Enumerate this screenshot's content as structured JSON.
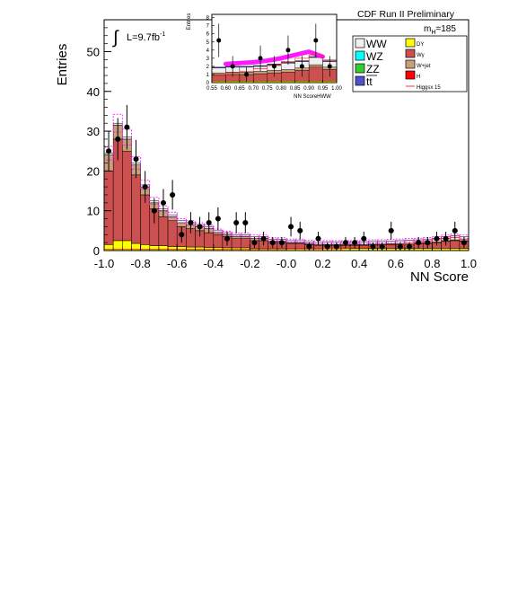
{
  "chart_data": {
    "type": "bar",
    "title": "CDF Run II Preliminary",
    "xlabel": "NN Score",
    "ylabel": "Entries",
    "xlim": [
      -1.0,
      1.0
    ],
    "ylim": [
      0,
      58
    ],
    "x_ticks": [
      "-1.0",
      "-0.8",
      "-0.6",
      "-0.4",
      "-0.2",
      "-0.0",
      "0.2",
      "0.4",
      "0.6",
      "0.8",
      "1.0"
    ],
    "y_ticks": [
      "0",
      "10",
      "20",
      "30",
      "40",
      "50"
    ],
    "luminosity_prefix": "L=9.7fb",
    "luminosity_exp": "-1",
    "mass_label_main": "m",
    "mass_label_sub": "H",
    "mass_label_value": "=185",
    "colors": {
      "WW": "#f0f0f0",
      "WZ": "#00ffff",
      "ZZ": "#33cc33",
      "ttbar": "#5050cc",
      "DY": "#ffff00",
      "Wgamma": "#cc5050",
      "Wjet": "#c8a07a",
      "H": "#ff0000",
      "signal_line": "#ff3333",
      "band": "#ff00ff"
    },
    "legend": [
      {
        "label": "WW",
        "color": "#f0f0f0"
      },
      {
        "label": "WZ",
        "color": "#00ffff"
      },
      {
        "label": "ZZ",
        "color": "#33cc33"
      },
      {
        "label": "tt",
        "overline": true,
        "color": "#5050cc"
      },
      {
        "label": "DY",
        "color": "#ffff00"
      },
      {
        "label": "Wγ",
        "color": "#cc5050"
      },
      {
        "label": "W+jet",
        "color": "#c8a07a"
      },
      {
        "label": "H",
        "color": "#ff0000"
      },
      {
        "label": "Higgsx 15",
        "color": "#ff3333",
        "line": true
      }
    ],
    "bins": {
      "low": [
        -1.0,
        -0.95,
        -0.9,
        -0.85,
        -0.8,
        -0.75,
        -0.7,
        -0.65,
        -0.6,
        -0.55,
        -0.5,
        -0.45,
        -0.4,
        -0.35,
        -0.3,
        -0.25,
        -0.2,
        -0.15,
        -0.1,
        -0.05,
        0.0,
        0.05,
        0.1,
        0.15,
        0.2,
        0.25,
        0.3,
        0.35,
        0.4,
        0.45,
        0.5,
        0.55,
        0.6,
        0.65,
        0.7,
        0.75,
        0.8,
        0.85,
        0.9,
        0.95
      ],
      "width": 0.05
    },
    "series": [
      {
        "name": "DY",
        "values": [
          1.5,
          2.5,
          2.5,
          1.8,
          1.5,
          1.2,
          1.2,
          1.0,
          1.0,
          0.9,
          0.9,
          0.8,
          0.8,
          0.7,
          0.7,
          0.7,
          0.6,
          0.6,
          0.6,
          0.6,
          0.5,
          0.5,
          0.5,
          0.5,
          0.5,
          0.5,
          0.5,
          0.5,
          0.5,
          0.5,
          0.5,
          0.5,
          0.5,
          0.5,
          0.5,
          0.5,
          0.5,
          0.5,
          0.5,
          0.5
        ]
      },
      {
        "name": "Wγ",
        "values": [
          18.5,
          25.5,
          22.5,
          17.2,
          12.5,
          9.3,
          7.3,
          6.5,
          5.0,
          4.6,
          4.1,
          3.7,
          3.2,
          2.8,
          2.3,
          2.3,
          1.9,
          1.9,
          1.4,
          1.4,
          1.3,
          1.3,
          1.0,
          0.8,
          0.8,
          0.8,
          0.8,
          0.8,
          0.8,
          0.9,
          0.9,
          1.0,
          1.0,
          1.1,
          1.2,
          1.3,
          1.5,
          1.8,
          2.0,
          1.8
        ]
      },
      {
        "name": "W+jet",
        "values": [
          4.0,
          3.5,
          3.0,
          2.5,
          2.0,
          1.5,
          1.5,
          1.0,
          1.0,
          1.0,
          1.0,
          1.0,
          0.5,
          0.5,
          0.5,
          0.5,
          0.5,
          0.5,
          0.3,
          0.3,
          0.2,
          0.2,
          0.2,
          0.2,
          0.2,
          0.2,
          0.2,
          0.2,
          0.2,
          0.2,
          0.2,
          0.2,
          0.2,
          0.2,
          0.2,
          0.2,
          0.2,
          0.2,
          0.2,
          0.2
        ]
      },
      {
        "name": "WW",
        "values": [
          0.5,
          0.5,
          0.5,
          0.5,
          0.5,
          0.5,
          0.5,
          0.5,
          0.5,
          0.5,
          0.5,
          0.5,
          0.5,
          0.5,
          0.5,
          0.5,
          0.5,
          0.5,
          0.5,
          0.5,
          0.5,
          0.5,
          0.5,
          0.5,
          0.6,
          0.6,
          0.6,
          0.6,
          0.6,
          0.7,
          0.7,
          0.7,
          0.8,
          0.8,
          0.8,
          0.9,
          0.9,
          1.0,
          1.0,
          1.0
        ]
      }
    ],
    "signal_x15": [
      0.3,
      0.3,
      0.3,
      0.3,
      0.3,
      0.3,
      0.3,
      0.3,
      0.3,
      0.3,
      0.3,
      0.3,
      0.3,
      0.3,
      0.3,
      0.3,
      0.3,
      0.3,
      0.3,
      0.3,
      0.4,
      0.4,
      0.4,
      0.4,
      0.5,
      0.5,
      0.6,
      0.7,
      0.8,
      0.9,
      1.0,
      1.2,
      1.4,
      1.7,
      2.0,
      2.3,
      2.7,
      3.0,
      3.3,
      2.8
    ],
    "data_points": {
      "x": [
        -0.975,
        -0.925,
        -0.875,
        -0.825,
        -0.775,
        -0.725,
        -0.675,
        -0.625,
        -0.575,
        -0.525,
        -0.475,
        -0.425,
        -0.375,
        -0.325,
        -0.275,
        -0.225,
        -0.175,
        -0.125,
        -0.075,
        -0.025,
        0.025,
        0.075,
        0.125,
        0.175,
        0.225,
        0.275,
        0.325,
        0.375,
        0.425,
        0.475,
        0.525,
        0.575,
        0.625,
        0.675,
        0.725,
        0.775,
        0.825,
        0.875,
        0.925,
        0.975
      ],
      "y": [
        25,
        28,
        31,
        23,
        16,
        10,
        12,
        14,
        4,
        7,
        6,
        7,
        8,
        3,
        7,
        7,
        2,
        3,
        2,
        2,
        6,
        5,
        1,
        3,
        1,
        1,
        2,
        2,
        3,
        1,
        1,
        5,
        1,
        1,
        2,
        2,
        3,
        3,
        5,
        2
      ]
    },
    "inset": {
      "xlabel": "NN ScoreHWW",
      "ylabel": "Entries",
      "xlim": [
        0.55,
        1.0
      ],
      "ylim": [
        0,
        8.4
      ],
      "x_ticks": [
        "0.55",
        "0.60",
        "0.65",
        "0.70",
        "0.75",
        "0.80",
        "0.85",
        "0.90",
        "0.95",
        "1.00"
      ],
      "y_ticks": [
        "0",
        "1",
        "2",
        "3",
        "4",
        "5",
        "6",
        "7",
        "8"
      ],
      "bins_low": [
        0.55,
        0.6,
        0.65,
        0.7,
        0.75,
        0.8,
        0.85,
        0.9,
        0.95
      ],
      "width": 0.05,
      "stack": [
        {
          "name": "DY",
          "values": [
            0.2,
            0.2,
            0.2,
            0.2,
            0.2,
            0.2,
            0.2,
            0.2,
            0.2
          ]
        },
        {
          "name": "Wγ",
          "values": [
            0.7,
            0.8,
            0.8,
            0.9,
            1.0,
            1.1,
            1.3,
            1.7,
            1.4
          ]
        },
        {
          "name": "W+jet",
          "values": [
            0.3,
            0.3,
            0.3,
            0.3,
            0.3,
            0.3,
            0.3,
            0.3,
            0.3
          ]
        },
        {
          "name": "WW",
          "values": [
            0.6,
            0.6,
            0.6,
            0.6,
            0.7,
            0.8,
            0.8,
            0.9,
            0.7
          ]
        },
        {
          "name": "tt",
          "values": [
            0.1,
            0.1,
            0.1,
            0.1,
            0.1,
            0.1,
            0.1,
            0.1,
            0.1
          ]
        }
      ],
      "signal_x15": [
        1.0,
        1.2,
        1.4,
        1.7,
        2.1,
        2.6,
        3.0,
        3.4,
        2.8
      ],
      "band_x": [
        0.6,
        0.65,
        0.7,
        0.75,
        0.8,
        0.85,
        0.9,
        0.95
      ],
      "band_y": [
        2.3,
        2.4,
        2.5,
        2.7,
        3.0,
        3.4,
        3.8,
        3.2
      ],
      "data_points": {
        "x": [
          0.575,
          0.625,
          0.675,
          0.725,
          0.775,
          0.825,
          0.875,
          0.925,
          0.975
        ],
        "y": [
          5.2,
          2.0,
          1.0,
          3.0,
          2.0,
          4.0,
          2.0,
          5.2,
          2.0
        ]
      }
    }
  }
}
